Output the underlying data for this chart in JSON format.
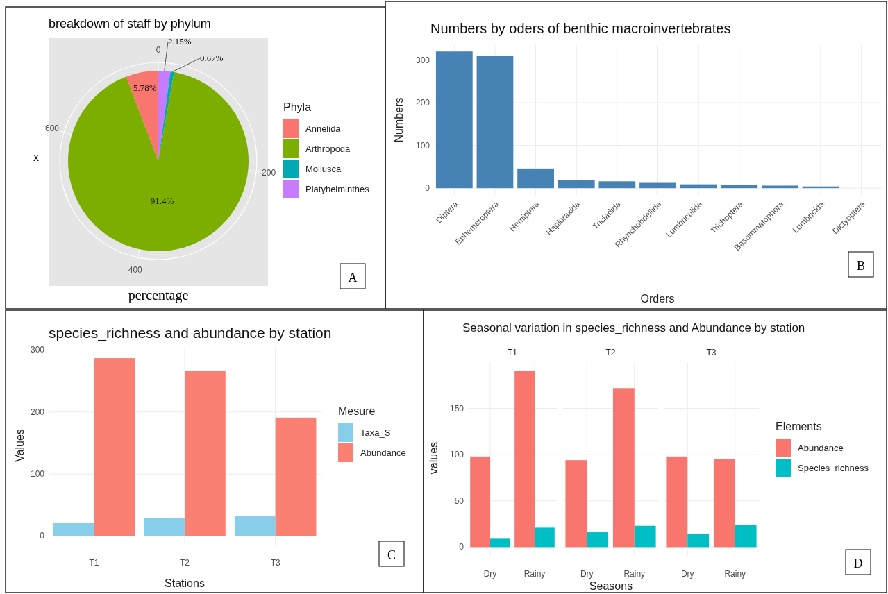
{
  "chart_data": [
    {
      "type": "pie",
      "title": "breakdown of staff by phylum",
      "xlabel": "percentage",
      "ylabel": "x",
      "categories": [
        "Annelida",
        "Arthropoda",
        "Mollusca",
        "Platyhelminthes"
      ],
      "values": [
        5.78,
        91.4,
        0.67,
        2.15
      ],
      "colors": [
        "#f8766d",
        "#7cae00",
        "#00a9b4",
        "#c77cff"
      ],
      "value_labels": [
        "5.78%",
        "91.4%",
        "0.67%",
        "2.15%"
      ],
      "grid": true,
      "legend": "right",
      "legend_title": "Phyla",
      "annotations": [
        "0",
        "200",
        "400",
        "600",
        "A"
      ]
    },
    {
      "type": "bar",
      "title": "Numbers by oders of benthic macroinvertebrates",
      "xlabel": "Orders",
      "ylabel": "Numbers",
      "categories": [
        "Diptera",
        "Ephemeroptera",
        "Hemiptera",
        "Haplotaxida",
        "Tricladida",
        "Rhynchobdellida",
        "Lumbriculida",
        "Trichoptera",
        "Basommatophora",
        "Lumbricida",
        "Dictyoptera"
      ],
      "values": [
        320,
        310,
        46,
        19,
        16,
        14,
        9,
        8,
        6,
        4,
        null
      ],
      "color": "#4682b4",
      "ylim": [
        -16,
        335
      ],
      "yticks": [
        0,
        100,
        200,
        300
      ],
      "grid": true,
      "annotations": [
        "B"
      ]
    },
    {
      "type": "bar",
      "title": "species_richness and abundance by station",
      "xlabel": "Stations",
      "ylabel": "Values",
      "categories": [
        "T1",
        "T2",
        "T3"
      ],
      "series": [
        {
          "name": "Taxa_S",
          "color": "#87ceeb",
          "values": [
            21,
            29,
            32
          ]
        },
        {
          "name": "Abundance",
          "color": "#fa8072",
          "values": [
            287,
            266,
            191
          ]
        }
      ],
      "ylim": [
        -14,
        305
      ],
      "yticks": [
        0,
        100,
        200,
        300
      ],
      "grid": true,
      "legend": "right",
      "legend_title": "Mesure",
      "annotations": [
        "C"
      ]
    },
    {
      "type": "bar",
      "title": "Seasonal variation in species_richness and Abundance by station",
      "subtitle": "T1",
      "ylabel": "values",
      "categories": [
        "Dry",
        "Rainy"
      ],
      "series": [
        {
          "color": "#f8766d",
          "values": [
            98,
            191
          ]
        },
        {
          "color": "#00bfc4",
          "values": [
            9,
            21
          ]
        }
      ],
      "ylim": [
        -9.5,
        200
      ],
      "yticks": [
        0,
        50,
        100,
        150
      ],
      "grid": true
    },
    {
      "type": "bar",
      "subtitle": "T2",
      "xlabel": "Seasons",
      "categories": [
        "Dry",
        "Rainy"
      ],
      "series": [
        {
          "color": "#f8766d",
          "values": [
            94,
            172
          ]
        },
        {
          "color": "#00bfc4",
          "values": [
            16,
            23
          ]
        }
      ],
      "ylim": [
        -9.5,
        200
      ],
      "yticks": [
        0,
        50,
        100,
        150
      ],
      "grid": true,
      "tick_labels": "x"
    },
    {
      "type": "bar",
      "subtitle": "T3",
      "categories": [
        "Dry",
        "Rainy"
      ],
      "series": [
        {
          "name": "Abundance",
          "color": "#f8766d",
          "values": [
            98,
            95
          ]
        },
        {
          "name": "Species_richness",
          "color": "#00bfc4",
          "values": [
            14,
            24
          ]
        }
      ],
      "ylim": [
        -9.5,
        200
      ],
      "yticks": [
        0,
        50,
        100,
        150
      ],
      "grid": true,
      "tick_labels": "x",
      "legend": "right",
      "legend_title": "Elements",
      "annotations": [
        "D"
      ]
    }
  ]
}
